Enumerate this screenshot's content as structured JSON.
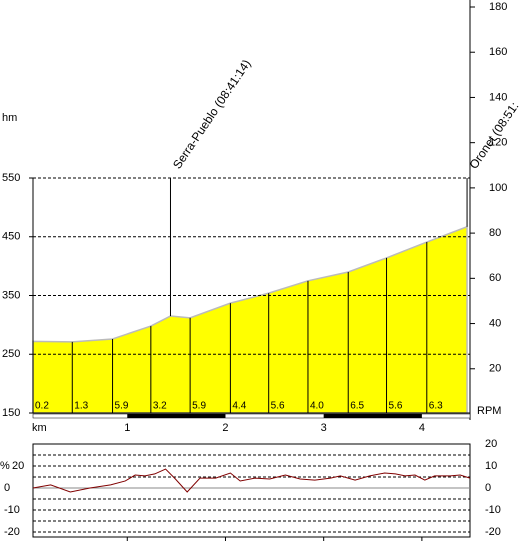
{
  "chart_data": [
    {
      "type": "area",
      "y_label": "hm",
      "x_label": "km",
      "y2_label": "RPM",
      "color": "#ffff00",
      "x": [
        0.04,
        0.44,
        0.85,
        1.24,
        1.44,
        1.64,
        2.05,
        2.44,
        2.84,
        3.25,
        3.64,
        4.05,
        4.46
      ],
      "values": [
        272,
        271,
        276,
        298,
        315,
        312,
        337,
        354,
        375,
        390,
        414,
        441,
        467
      ],
      "xlim": [
        0.04,
        4.49
      ],
      "xticks": [
        1,
        2,
        3,
        4
      ],
      "ylim": [
        150,
        550
      ],
      "yticks": [
        150,
        250,
        350,
        450,
        550
      ],
      "grid": true,
      "y2lim": [
        0,
        180
      ],
      "y2ticks": [
        20,
        40,
        60,
        80,
        100,
        120,
        140,
        160,
        180
      ],
      "segment_x": [
        0.04,
        0.44,
        0.85,
        1.24,
        1.64,
        2.05,
        2.44,
        2.84,
        3.25,
        3.64,
        4.05
      ],
      "segment_labels": [
        "0.2",
        "1.3",
        "5.9",
        "3.2",
        "5.9",
        "4.4",
        "5.6",
        "4.0",
        "6.5",
        "5.6",
        "6.3"
      ],
      "annotations": [
        {
          "x": 1.44,
          "text": "Serra-Pueblo (08:41:14)"
        },
        {
          "x": 4.46,
          "text": "Oronet (08:51:"
        }
      ]
    },
    {
      "type": "line",
      "y_label": "%",
      "color": "#800000",
      "x": [
        0.04,
        0.22,
        0.42,
        0.62,
        0.83,
        0.98,
        1.08,
        1.18,
        1.28,
        1.39,
        1.49,
        1.61,
        1.74,
        1.9,
        2.05,
        2.15,
        2.3,
        2.45,
        2.61,
        2.76,
        2.91,
        3.07,
        3.17,
        3.32,
        3.47,
        3.62,
        3.73,
        3.83,
        3.93,
        4.03,
        4.13,
        4.29,
        4.39,
        4.49
      ],
      "values": [
        0,
        1.4,
        -1.8,
        0,
        1.4,
        3.2,
        5.9,
        5.5,
        6.4,
        8.6,
        4.1,
        -1.8,
        4.5,
        4.5,
        6.8,
        3.2,
        4.5,
        4.1,
        5.9,
        4.1,
        3.6,
        4.5,
        5.5,
        3.6,
        5.5,
        6.8,
        6.4,
        5.5,
        5.9,
        3.6,
        5.5,
        5.5,
        5.9,
        4.5
      ],
      "xlim": [
        0.04,
        4.49
      ],
      "ylim": [
        -22,
        20
      ],
      "yticks": [
        20,
        10,
        0,
        -10,
        -20
      ],
      "grid_values": [
        15,
        10,
        5,
        -5,
        -10,
        -15,
        -20
      ],
      "left_tick_labels": [
        "20",
        "0",
        "-10",
        "-20"
      ]
    }
  ]
}
